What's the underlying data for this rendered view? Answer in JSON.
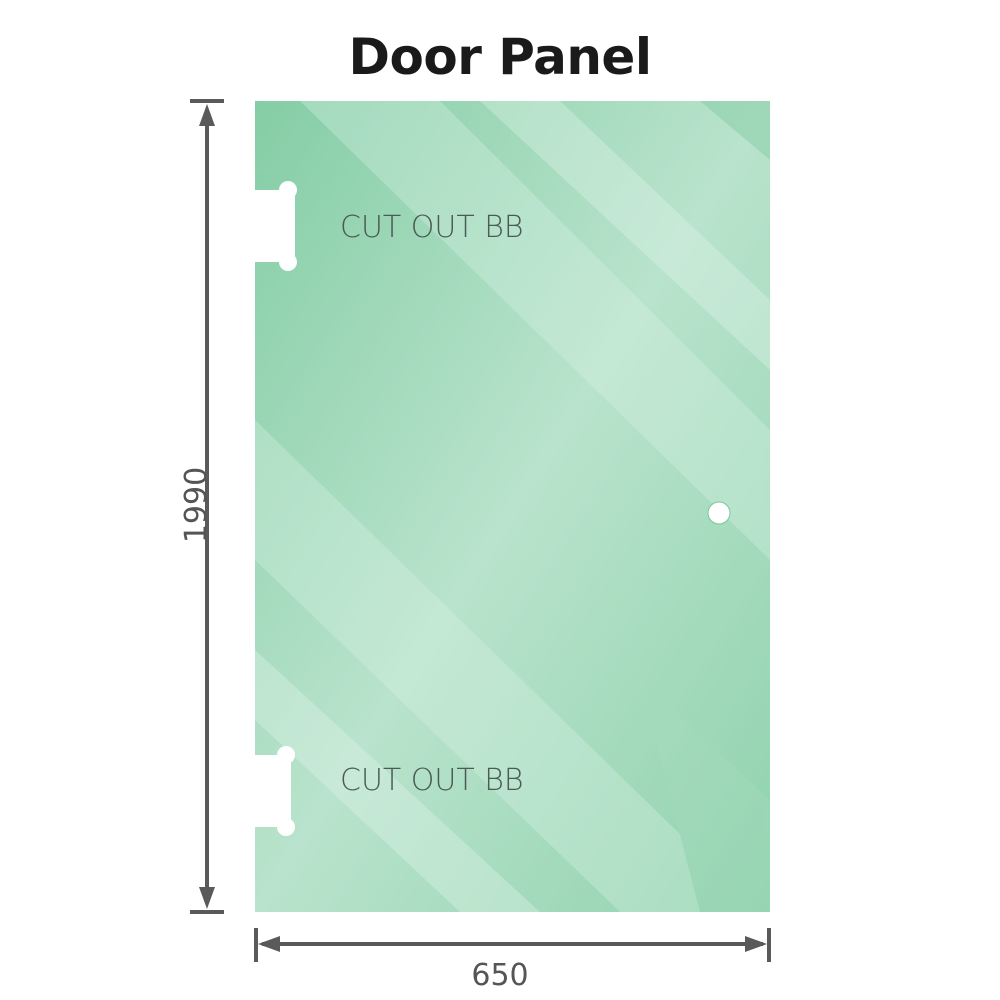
{
  "title": "Door Panel",
  "panel": {
    "color": "#86cfa8",
    "cutouts": [
      {
        "label": "CUT OUT BB"
      },
      {
        "label": "CUT OUT BB"
      }
    ],
    "hole_icon": "circle-hole"
  },
  "dimensions": {
    "height": "1990",
    "width": "650",
    "line_color": "#5a5a5a"
  }
}
